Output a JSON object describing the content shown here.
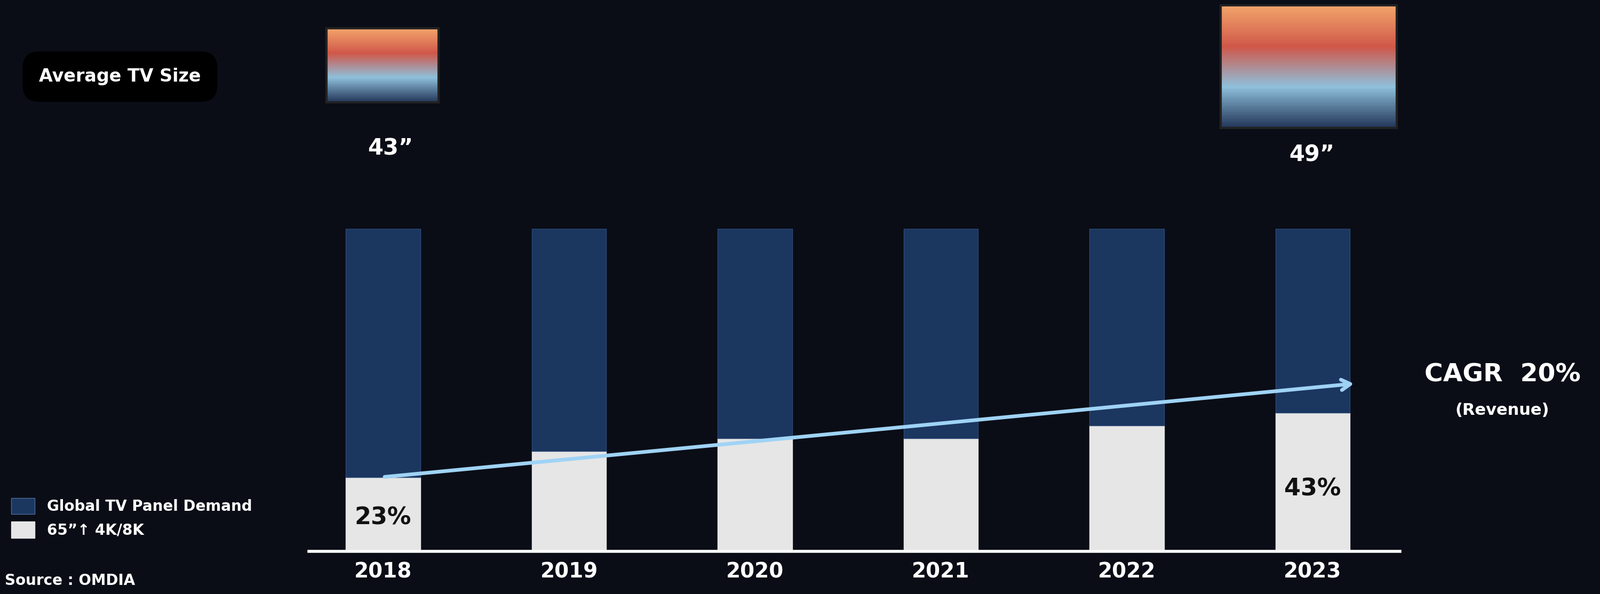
{
  "chart_data": {
    "type": "bar",
    "stacked": true,
    "title": "Average TV Size",
    "categories": [
      "2018",
      "2019",
      "2020",
      "2021",
      "2022",
      "2023"
    ],
    "series": [
      {
        "name": "65”↑ 4K/8K",
        "color": "#e6e6e6",
        "values": [
          23,
          31,
          35,
          35,
          39,
          43
        ],
        "value_labels": [
          "23%",
          null,
          null,
          null,
          null,
          "43%"
        ]
      },
      {
        "name": "Global TV Panel Demand",
        "color": "#1b365f",
        "values": [
          77,
          69,
          65,
          65,
          61,
          57
        ]
      }
    ],
    "ylim": [
      0,
      100
    ],
    "tick_labels": "x",
    "legend": "lower left",
    "data_labels": true,
    "annotations": [
      "43”",
      "49”",
      "CAGR  20%",
      "(Revenue)",
      "Source : OMDIA"
    ]
  }
}
